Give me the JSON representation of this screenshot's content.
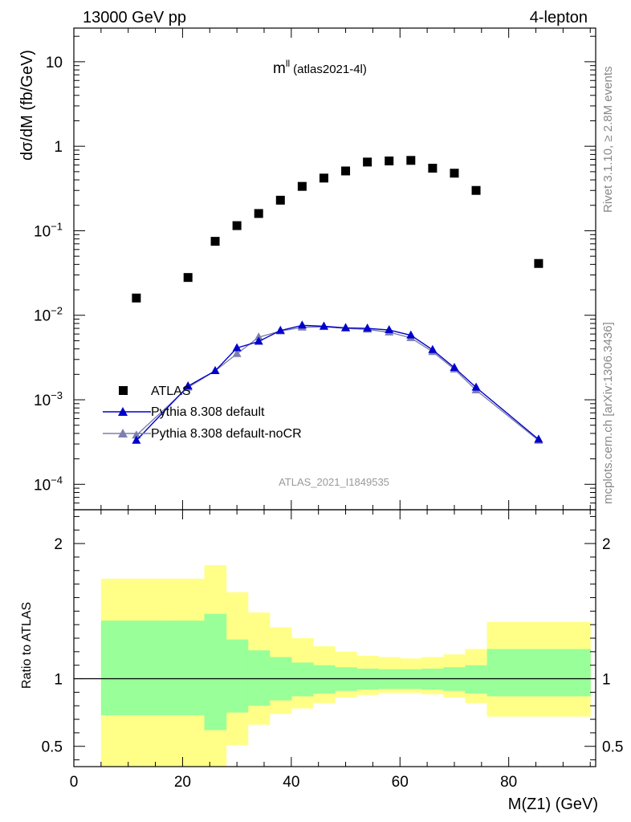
{
  "header": {
    "left": "13000 GeV pp",
    "right": "4-lepton"
  },
  "plot_title": {
    "main": "m",
    "sup": "ll",
    "paren": "(atlas2021-4l)"
  },
  "side_labels": {
    "upper": "Rivet 3.1.10, ≥ 2.8M events",
    "lower": "mcplots.cern.ch [arXiv:1306.3436]"
  },
  "watermark": "ATLAS_2021_I1849535",
  "colors": {
    "atlas": "#000000",
    "pythia_default": "#0000cc",
    "pythia_nocr": "#7f7faf",
    "band_inner": "#99ff99",
    "band_outer": "#ffff88"
  },
  "chart_data": [
    {
      "type": "scatter",
      "ylabel": "dσ/dM (fb/GeV)",
      "yscale": "log",
      "xlim": [
        0,
        96
      ],
      "ylim": [
        5e-05,
        25
      ],
      "y_ticks": [
        {
          "v": 0.0001,
          "base": "10",
          "exp": "−4"
        },
        {
          "v": 0.001,
          "base": "10",
          "exp": "−3"
        },
        {
          "v": 0.01,
          "base": "10",
          "exp": "−2"
        },
        {
          "v": 0.1,
          "base": "10",
          "exp": "−1"
        },
        {
          "v": 1,
          "base": "1",
          "exp": ""
        },
        {
          "v": 10,
          "base": "10",
          "exp": ""
        }
      ],
      "legend": {
        "position": "lower-left"
      },
      "series": [
        {
          "name": "ATLAS",
          "style": "markers",
          "x": [
            11.5,
            21,
            26,
            30,
            34,
            38,
            42,
            46,
            50,
            54,
            58,
            62,
            66,
            70,
            74,
            85.5
          ],
          "y": [
            0.016,
            0.028,
            0.075,
            0.115,
            0.16,
            0.23,
            0.335,
            0.42,
            0.51,
            0.65,
            0.67,
            0.68,
            0.55,
            0.48,
            0.3,
            0.041
          ]
        },
        {
          "name": "Pythia 8.308 default",
          "style": "line+triangles",
          "x": [
            11.5,
            21,
            26,
            30,
            34,
            38,
            42,
            46,
            50,
            54,
            58,
            62,
            66,
            70,
            74,
            85.5
          ],
          "y": [
            0.00033,
            0.00145,
            0.0022,
            0.0041,
            0.0049,
            0.0066,
            0.0076,
            0.0074,
            0.0071,
            0.007,
            0.0067,
            0.0058,
            0.0039,
            0.0024,
            0.0014,
            0.00034
          ]
        },
        {
          "name": "Pythia 8.308 default-noCR",
          "style": "line+triangles",
          "x": [
            11.5,
            21,
            26,
            30,
            34,
            38,
            42,
            46,
            50,
            54,
            58,
            62,
            66,
            70,
            74,
            85.5
          ],
          "y": [
            0.00038,
            0.0014,
            0.0022,
            0.0035,
            0.0055,
            0.0065,
            0.0072,
            0.0073,
            0.007,
            0.0068,
            0.0063,
            0.0054,
            0.0037,
            0.0023,
            0.0013,
            0.00033
          ]
        }
      ]
    },
    {
      "type": "area",
      "ylabel": "Ratio to ATLAS",
      "xlabel": "M(Z1) (GeV)",
      "xlim": [
        0,
        96
      ],
      "ylim": [
        0.35,
        2.25
      ],
      "x_ticks": [
        0,
        20,
        40,
        60,
        80
      ],
      "y_ticks": [
        0.5,
        1,
        2
      ],
      "reference": 1,
      "bins": [
        5,
        18,
        24,
        28,
        32,
        36,
        40,
        44,
        48,
        52,
        56,
        60,
        64,
        68,
        72,
        76,
        95
      ],
      "inner_band": {
        "lo": [
          0.73,
          0.73,
          0.62,
          0.75,
          0.8,
          0.84,
          0.87,
          0.89,
          0.91,
          0.92,
          0.925,
          0.925,
          0.92,
          0.91,
          0.89,
          0.87
        ],
        "hi": [
          1.43,
          1.43,
          1.48,
          1.29,
          1.21,
          1.16,
          1.12,
          1.1,
          1.085,
          1.075,
          1.07,
          1.07,
          1.075,
          1.085,
          1.1,
          1.22
        ]
      },
      "outer_band": {
        "lo": [
          0.35,
          0.35,
          0.35,
          0.51,
          0.66,
          0.74,
          0.78,
          0.82,
          0.86,
          0.88,
          0.895,
          0.895,
          0.885,
          0.86,
          0.82,
          0.72
        ],
        "hi": [
          1.74,
          1.74,
          1.84,
          1.64,
          1.49,
          1.38,
          1.3,
          1.24,
          1.2,
          1.17,
          1.16,
          1.15,
          1.16,
          1.18,
          1.22,
          1.42
        ]
      }
    }
  ],
  "legend_entries": [
    {
      "label": "ATLAS"
    },
    {
      "label": "Pythia 8.308 default"
    },
    {
      "label": "Pythia 8.308 default-noCR"
    }
  ]
}
